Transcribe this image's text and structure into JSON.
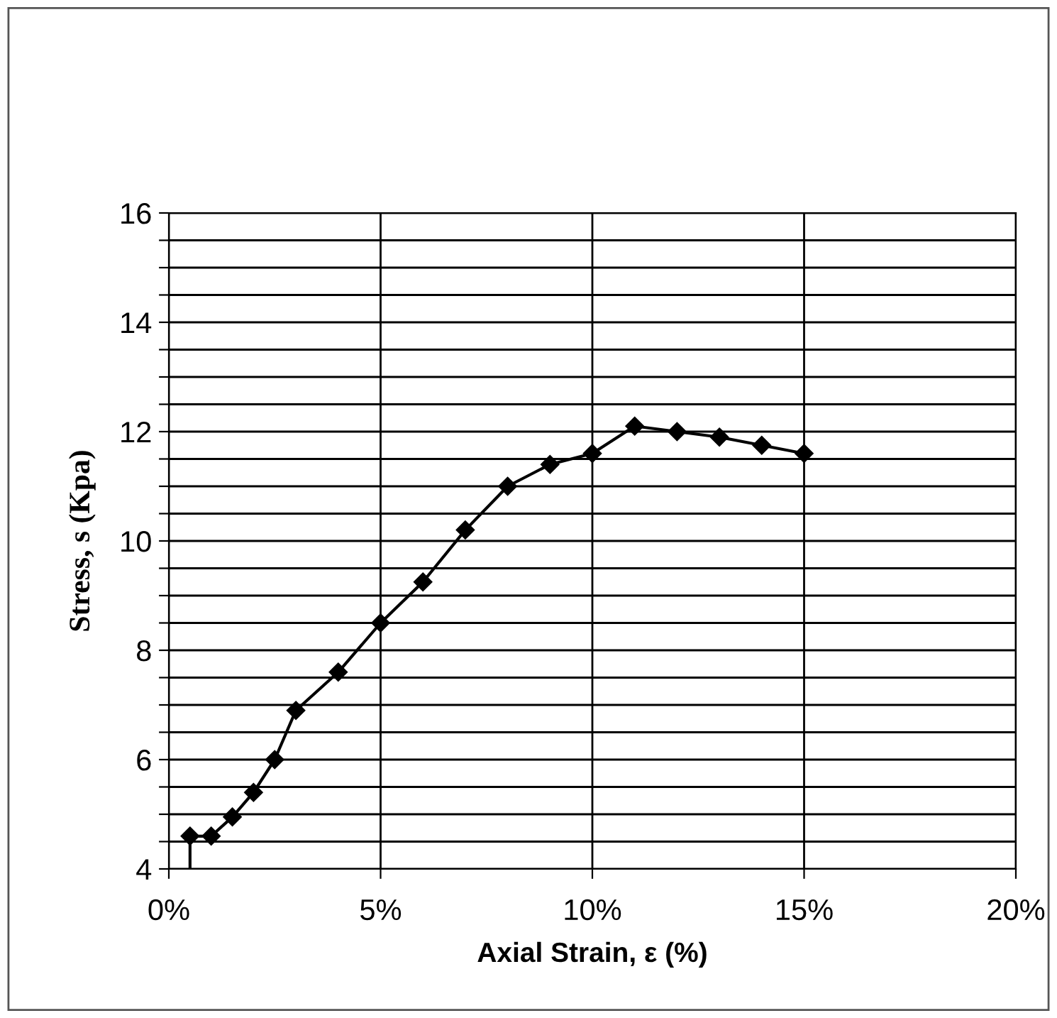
{
  "chart_data": {
    "type": "line",
    "xlabel": "Axial Strain, ε (%)",
    "ylabel": "Stress, s (Kpa)",
    "series": [
      {
        "color": "#000000",
        "marker": "diamond",
        "x": [
          0.5,
          1,
          1.5,
          2,
          2.5,
          3,
          4,
          5,
          6,
          7,
          8,
          9,
          10,
          11,
          12,
          13,
          14,
          15
        ],
        "values": [
          4.6,
          4.6,
          4.95,
          5.4,
          6.0,
          6.9,
          7.6,
          8.5,
          9.25,
          10.2,
          11.0,
          11.4,
          11.6,
          12.1,
          12.0,
          11.9,
          11.75,
          11.6
        ]
      },
      {
        "color": "#000000",
        "marker": "none",
        "x": [
          0.5,
          0.5
        ],
        "values": [
          4.0,
          4.6
        ]
      }
    ],
    "xlim": [
      0,
      20
    ],
    "xticks": [
      {
        "value": 0,
        "label": "0%"
      },
      {
        "value": 5,
        "label": "5%"
      },
      {
        "value": 10,
        "label": "10%"
      },
      {
        "value": 15,
        "label": "15%"
      },
      {
        "value": 20,
        "label": "20%"
      }
    ],
    "ylim": [
      4,
      16
    ],
    "yticks": [
      4,
      {
        "value": 4.5,
        "label": null
      },
      {
        "value": 5,
        "label": null
      },
      {
        "value": 5.5,
        "label": null
      },
      6,
      {
        "value": 6.5,
        "label": null
      },
      {
        "value": 7,
        "label": null
      },
      {
        "value": 7.5,
        "label": null
      },
      8,
      {
        "value": 8.5,
        "label": null
      },
      {
        "value": 9,
        "label": null
      },
      {
        "value": 9.5,
        "label": null
      },
      10,
      {
        "value": 10.5,
        "label": null
      },
      {
        "value": 11,
        "label": null
      },
      {
        "value": 11.5,
        "label": null
      },
      12,
      {
        "value": 12.5,
        "label": null
      },
      {
        "value": 13,
        "label": null
      },
      {
        "value": 13.5,
        "label": null
      },
      14,
      {
        "value": 14.5,
        "label": null
      },
      {
        "value": 15,
        "label": null
      },
      {
        "value": 15.5,
        "label": null
      },
      16
    ],
    "grid": true
  }
}
